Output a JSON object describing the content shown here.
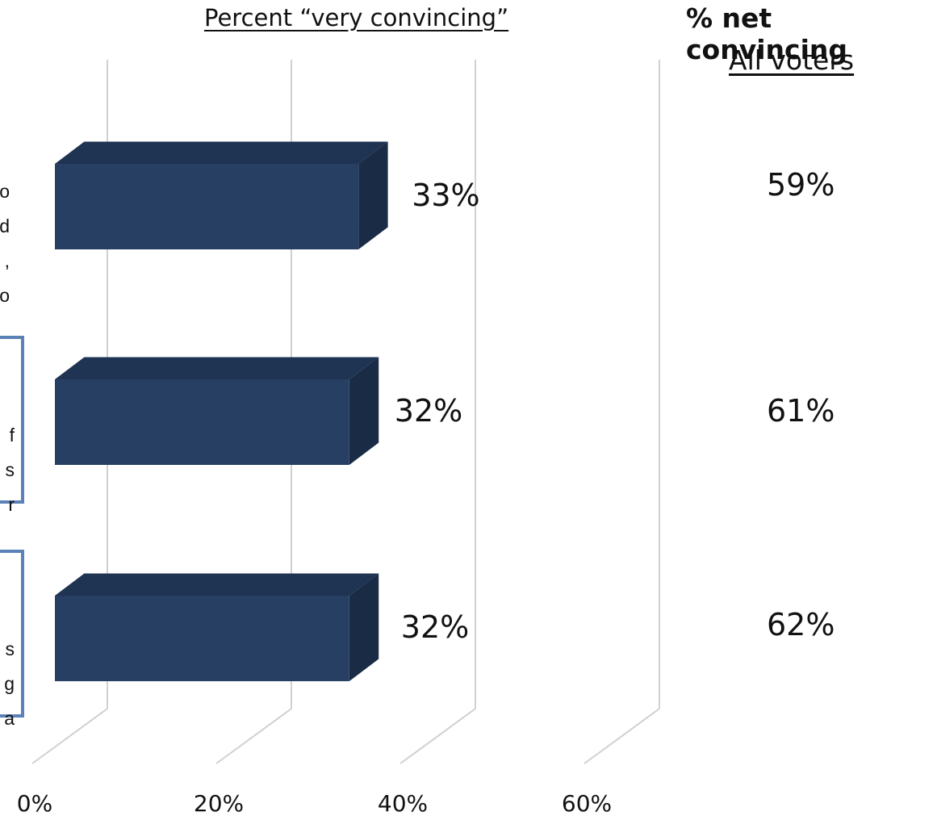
{
  "header": {
    "title": "Percent “very convincing”",
    "net_title": "% net convincing",
    "net_subtitle": "All voters"
  },
  "statements": [
    {
      "lines": [
        "o",
        "d",
        ",",
        "o"
      ],
      "boxed": false
    },
    {
      "lines": [
        "f",
        "s",
        "r"
      ],
      "boxed": true
    },
    {
      "lines": [
        "s",
        "g",
        "a"
      ],
      "boxed": true
    }
  ],
  "net_values": [
    "59%",
    "61%",
    "62%"
  ],
  "chart_data": {
    "type": "bar",
    "orientation": "horizontal",
    "categories": [
      "",
      "",
      ""
    ],
    "values": [
      33,
      32,
      32
    ],
    "data_labels": [
      "33%",
      "32%",
      "32%"
    ],
    "x_ticks": [
      "0%",
      "20%",
      "40%",
      "60%"
    ],
    "xlim": [
      0,
      60
    ],
    "grid": true,
    "colors": {
      "bar_front": "#263f63",
      "bar_top": "#1f3352",
      "bar_side": "#1a2b45",
      "grid": "#d0d0d0",
      "box_border": "#5a82b6"
    }
  }
}
